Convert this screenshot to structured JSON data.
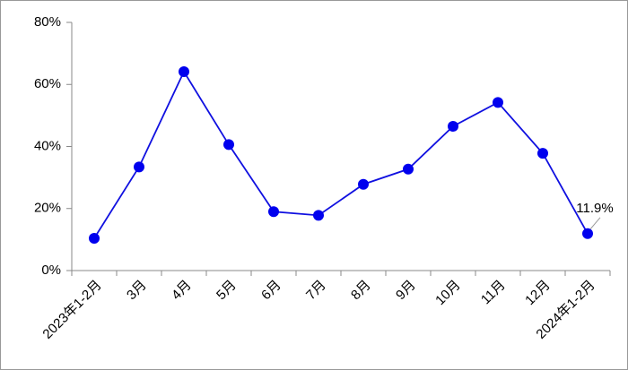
{
  "chart_data": {
    "type": "line",
    "categories": [
      "2023年1-2月",
      "3月",
      "4月",
      "5月",
      "6月",
      "7月",
      "8月",
      "9月",
      "10月",
      "11月",
      "12月",
      "2024年1-2月"
    ],
    "values": [
      10.4,
      33.4,
      64.1,
      40.6,
      19.0,
      17.8,
      27.8,
      32.7,
      46.5,
      54.2,
      37.8,
      11.9
    ],
    "value_labels": [
      null,
      null,
      null,
      null,
      null,
      null,
      null,
      null,
      null,
      null,
      null,
      "11.9%"
    ],
    "color": "#1010e0",
    "ylim": [
      0,
      80
    ],
    "yticks": [
      {
        "value": 0,
        "label": "0%"
      },
      {
        "value": 20,
        "label": "20%"
      },
      {
        "value": 40,
        "label": "40%"
      },
      {
        "value": 60,
        "label": "60%"
      },
      {
        "value": 80,
        "label": "80%"
      }
    ],
    "grid": false
  }
}
